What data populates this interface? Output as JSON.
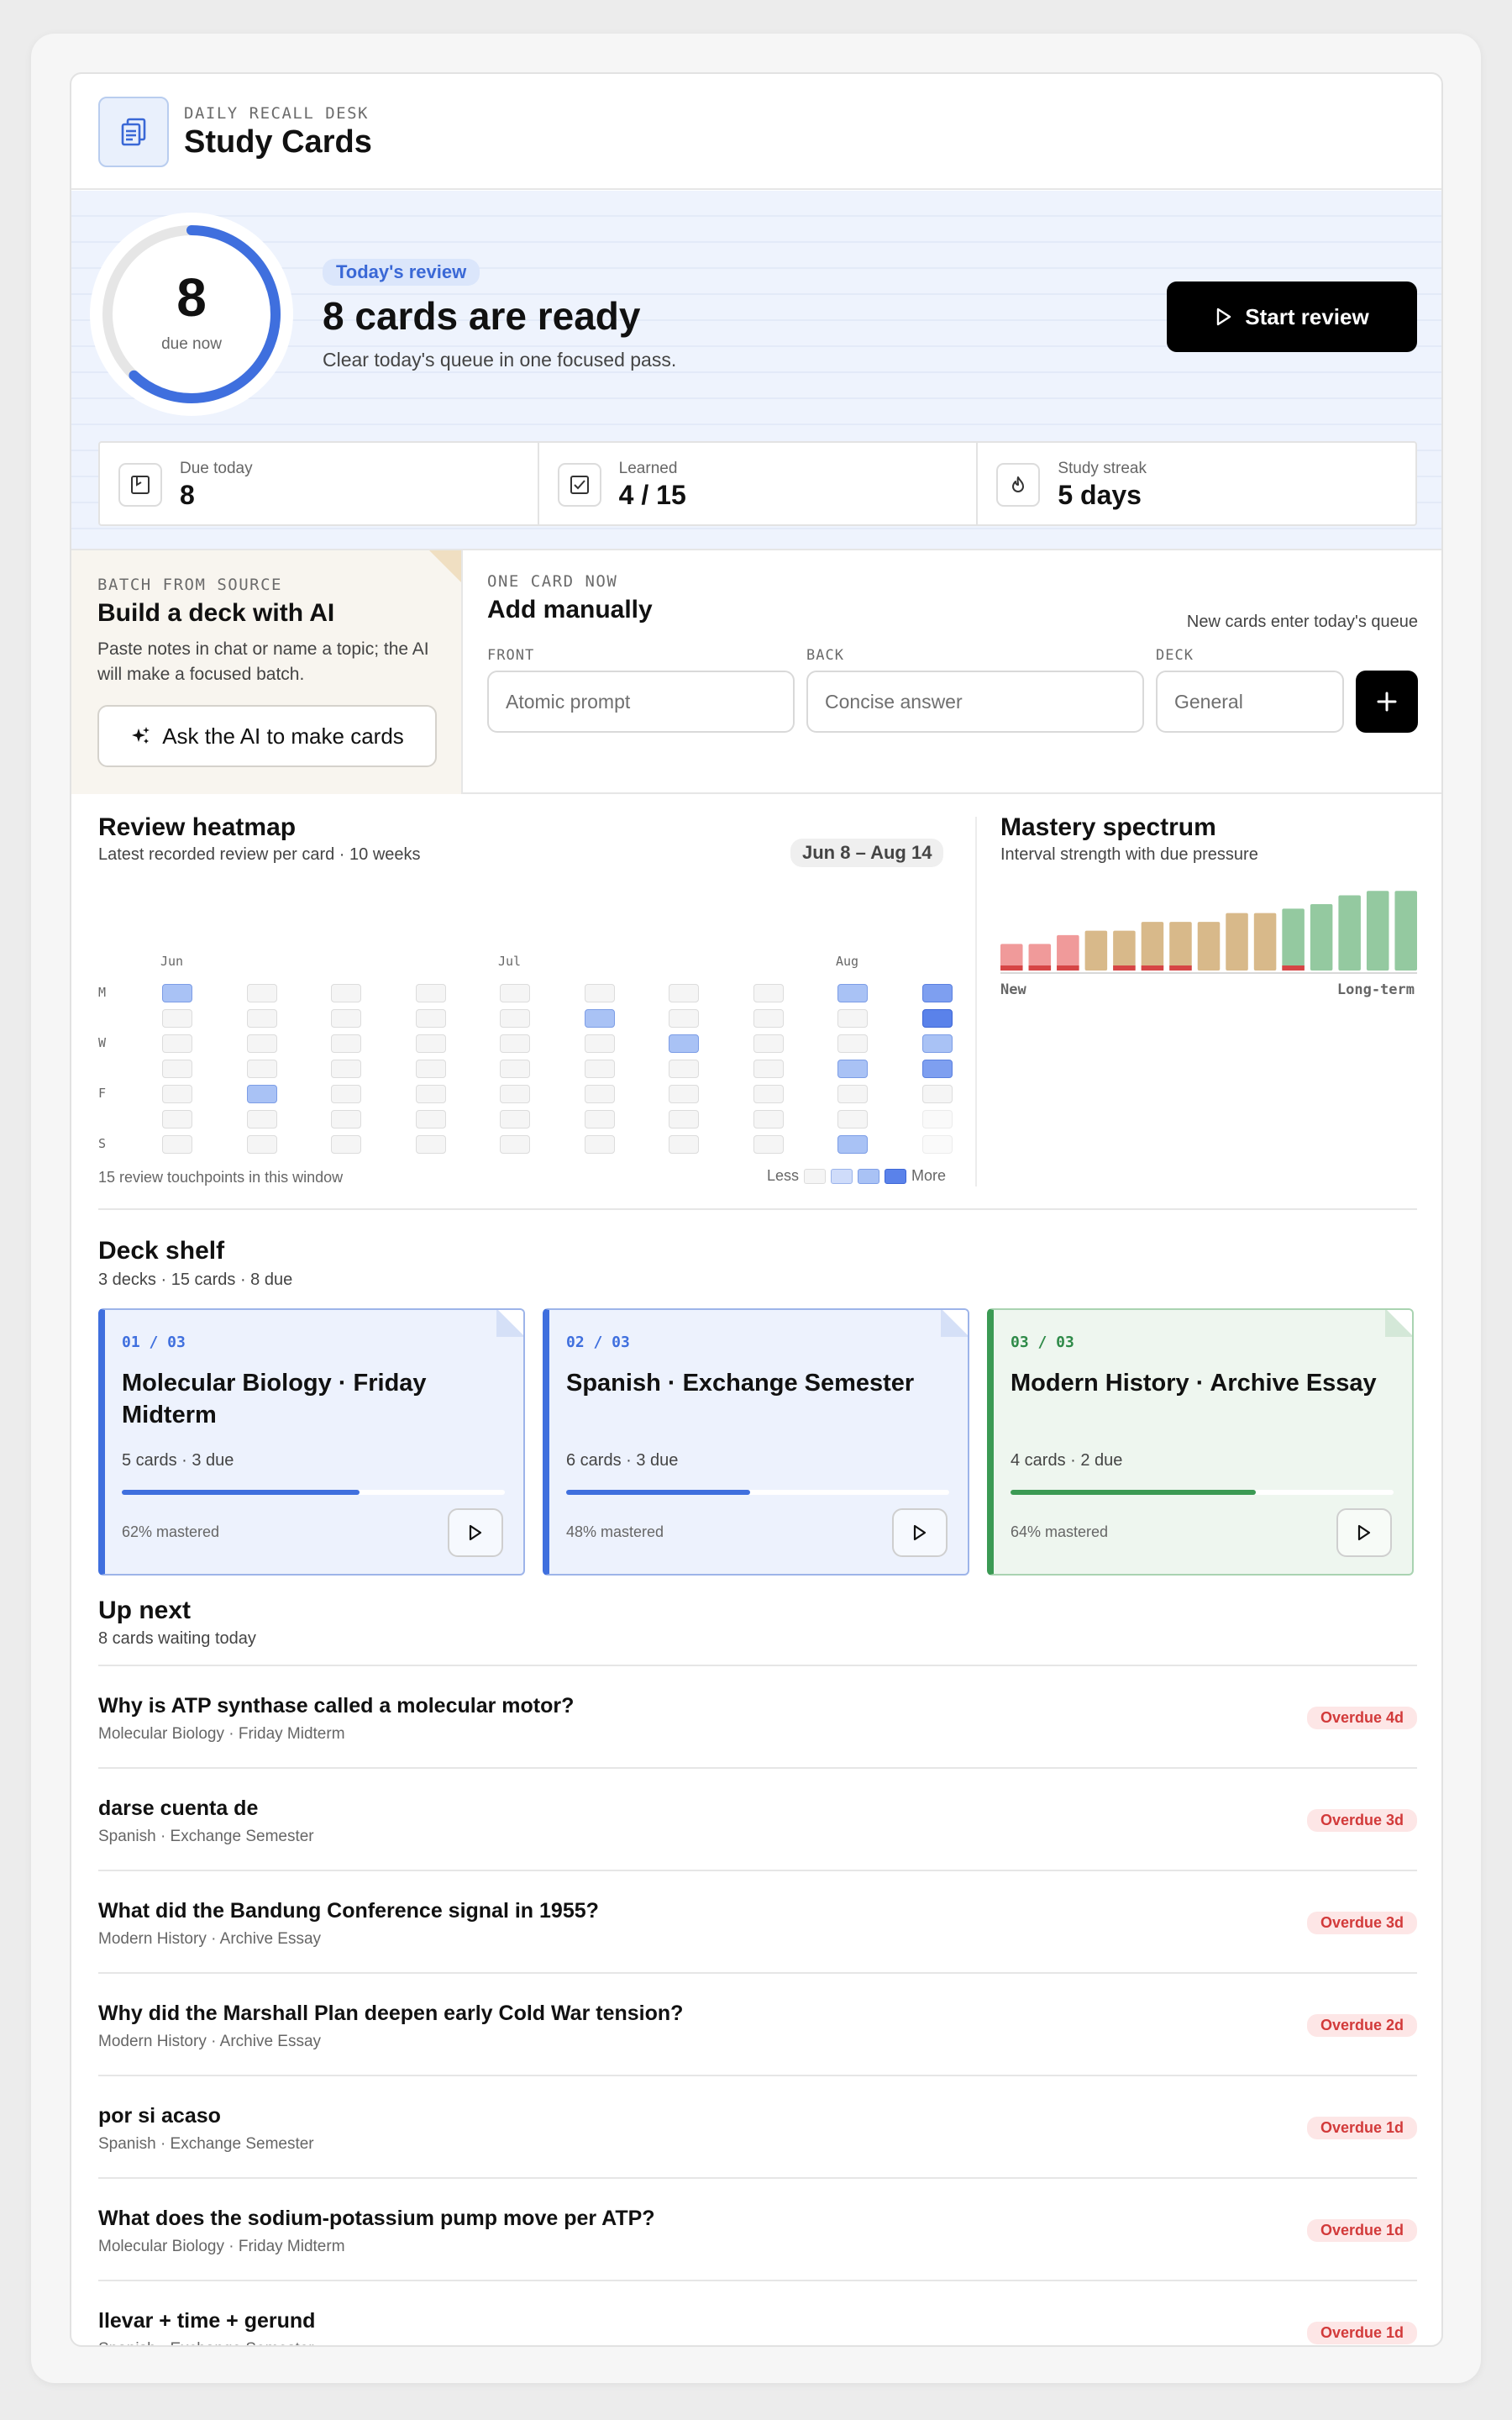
{
  "header": {
    "eyebrow": "DAILY RECALL DESK",
    "title": "Study Cards"
  },
  "review": {
    "due_count": "8",
    "due_label": "due now",
    "ring_progress": 0.62,
    "badge": "Today's review",
    "title": "8 cards are ready",
    "subtitle": "Clear today's queue in one focused pass.",
    "start_label": "Start review"
  },
  "stats": [
    {
      "label": "Due today",
      "value": "8",
      "icon": "calendar-icon"
    },
    {
      "label": "Learned",
      "value": "4 / 15",
      "icon": "checkbox-icon"
    },
    {
      "label": "Study streak",
      "value": "5 days",
      "icon": "flame-icon"
    }
  ],
  "ai_batch": {
    "eyebrow": "BATCH FROM SOURCE",
    "title": "Build a deck with AI",
    "description": "Paste notes in chat or name a topic; the AI will make a focused batch.",
    "button_label": "Ask the AI to make cards"
  },
  "manual": {
    "eyebrow": "ONE CARD NOW",
    "title": "Add manually",
    "note": "New cards enter today's queue",
    "front_label": "FRONT",
    "front_placeholder": "Atomic prompt",
    "back_label": "BACK",
    "back_placeholder": "Concise answer",
    "deck_label": "DECK",
    "deck_placeholder": "General"
  },
  "heatmap": {
    "title": "Review heatmap",
    "subtitle": "Latest recorded review per card · 10 weeks",
    "range": "Jun 8 – Aug 14",
    "months": [
      {
        "label": "Jun",
        "col": 0
      },
      {
        "label": "Jul",
        "col": 4
      },
      {
        "label": "Aug",
        "col": 8
      }
    ],
    "day_labels": [
      {
        "label": "M",
        "row": 0
      },
      {
        "label": "W",
        "row": 2
      },
      {
        "label": "F",
        "row": 4
      },
      {
        "label": "S",
        "row": 6
      }
    ],
    "levels": [
      [
        2,
        0,
        0,
        0,
        0,
        0,
        0,
        0,
        2,
        3
      ],
      [
        0,
        0,
        0,
        0,
        0,
        2,
        0,
        0,
        0,
        4
      ],
      [
        0,
        0,
        0,
        0,
        0,
        0,
        2,
        0,
        0,
        2
      ],
      [
        0,
        0,
        0,
        0,
        0,
        0,
        0,
        0,
        2,
        3
      ],
      [
        0,
        2,
        0,
        0,
        0,
        0,
        0,
        0,
        0,
        0
      ],
      [
        0,
        0,
        0,
        0,
        0,
        0,
        0,
        0,
        0,
        -1
      ],
      [
        0,
        0,
        0,
        0,
        0,
        0,
        0,
        0,
        2,
        -1
      ]
    ],
    "footer": "15 review touchpoints in this window",
    "legend_less": "Less",
    "legend_more": "More"
  },
  "mastery": {
    "title": "Mastery spectrum",
    "subtitle": "Interval strength with due pressure",
    "label_new": "New",
    "label_long": "Long-term",
    "chart_data": {
      "type": "bar",
      "values": [
        3,
        3,
        4,
        4.5,
        4.5,
        5.5,
        5.5,
        5.5,
        6.5,
        6.5,
        7,
        7.5,
        8.5,
        9,
        9
      ],
      "due_pressure": [
        1,
        1,
        1,
        0,
        1,
        1,
        1,
        0,
        0,
        0,
        1,
        0,
        0,
        0,
        0
      ],
      "band_colors": [
        "#f09a9a",
        "#f09a9a",
        "#f09a9a",
        "#d8b98a",
        "#d8b98a",
        "#d8b98a",
        "#d8b98a",
        "#d8b98a",
        "#d8b98a",
        "#d8b98a",
        "#94c9a0",
        "#94c9a0",
        "#94c9a0",
        "#94c9a0",
        "#94c9a0"
      ]
    }
  },
  "deck_shelf": {
    "title": "Deck shelf",
    "subtitle": "3 decks · 15 cards · 8 due",
    "decks": [
      {
        "index": "01 / 03",
        "title": "Molecular Biology · Friday Midterm",
        "meta": "5 cards · 3 due",
        "mastered_label": "62% mastered",
        "mastery": 0.62
      },
      {
        "index": "02 / 03",
        "title": "Spanish · Exchange Semester",
        "meta": "6 cards · 3 due",
        "mastered_label": "48% mastered",
        "mastery": 0.48
      },
      {
        "index": "03 / 03",
        "title": "Modern History · Archive Essay",
        "meta": "4 cards · 2 due",
        "mastered_label": "64% mastered",
        "mastery": 0.64
      }
    ]
  },
  "up_next": {
    "title": "Up next",
    "subtitle": "8 cards waiting today",
    "items": [
      {
        "question": "Why is ATP synthase called a molecular motor?",
        "deck": "Molecular Biology · Friday Midterm",
        "status": "Overdue 4d"
      },
      {
        "question": "darse cuenta de",
        "deck": "Spanish · Exchange Semester",
        "status": "Overdue 3d"
      },
      {
        "question": "What did the Bandung Conference signal in 1955?",
        "deck": "Modern History · Archive Essay",
        "status": "Overdue 3d"
      },
      {
        "question": "Why did the Marshall Plan deepen early Cold War tension?",
        "deck": "Modern History · Archive Essay",
        "status": "Overdue 2d"
      },
      {
        "question": "por si acaso",
        "deck": "Spanish · Exchange Semester",
        "status": "Overdue 1d"
      },
      {
        "question": "What does the sodium-potassium pump move per ATP?",
        "deck": "Molecular Biology · Friday Midterm",
        "status": "Overdue 1d"
      },
      {
        "question": "llevar + time + gerund",
        "deck": "Spanish · Exchange Semester",
        "status": "Overdue 1d"
      }
    ]
  }
}
